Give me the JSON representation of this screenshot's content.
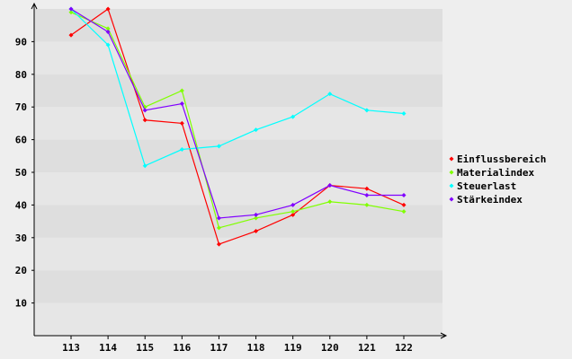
{
  "chart_data": {
    "type": "line",
    "title": "",
    "xlabel": "",
    "ylabel": "",
    "categories": [
      "113",
      "114",
      "115",
      "116",
      "117",
      "118",
      "119",
      "120",
      "121",
      "122"
    ],
    "yticks": [
      "10",
      "20",
      "30",
      "40",
      "50",
      "60",
      "70",
      "80",
      "90"
    ],
    "ylim": [
      0,
      100
    ],
    "grid": "alternating horizontal bands",
    "legend_position": "right",
    "series": [
      {
        "name": "Einflussbereich",
        "color": "#ff0000",
        "values": [
          92,
          100,
          66,
          65,
          28,
          32,
          37,
          46,
          45,
          40
        ]
      },
      {
        "name": "Materialindex",
        "color": "#80ff00",
        "values": [
          99,
          94,
          70,
          75,
          33,
          36,
          38,
          41,
          40,
          38
        ]
      },
      {
        "name": "Steuerlast",
        "color": "#00ffff",
        "values": [
          100,
          89,
          52,
          57,
          58,
          63,
          67,
          74,
          69,
          68
        ]
      },
      {
        "name": "Stärkeindex",
        "color": "#8000ff",
        "values": [
          100,
          93,
          69,
          71,
          36,
          37,
          40,
          46,
          43,
          43
        ]
      }
    ]
  }
}
